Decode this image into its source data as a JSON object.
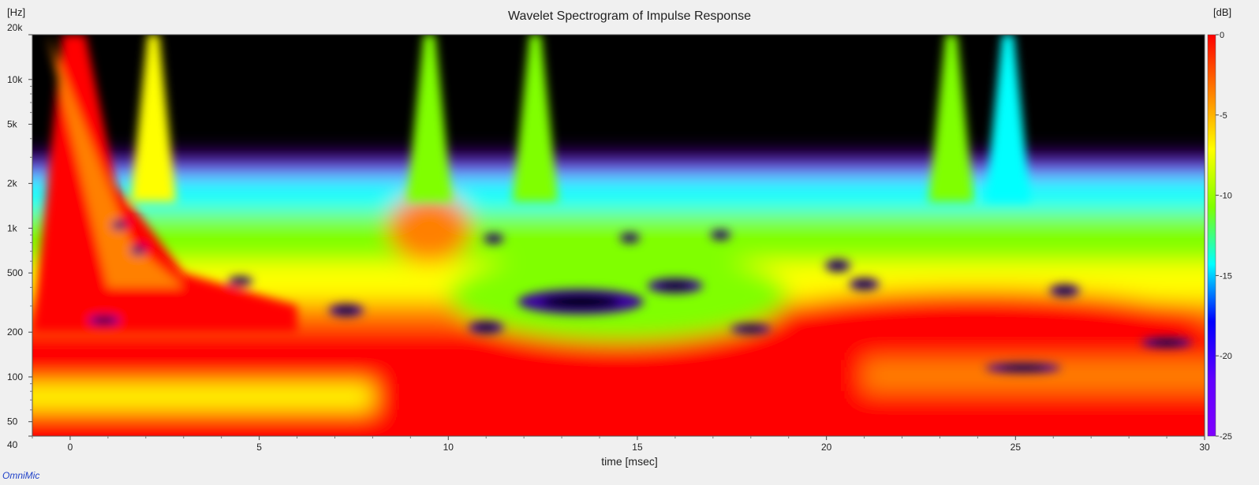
{
  "chart_data": {
    "type": "heatmap",
    "title": "Wavelet Spectrogram of Impulse Response",
    "xlabel": "time [msec]",
    "ylabel": "[Hz]",
    "colorbar_label": "[dB]",
    "x_range": [
      -1,
      30
    ],
    "y_range_hz": [
      40,
      20000
    ],
    "y_scale": "log",
    "z_range_db": [
      -25,
      0
    ],
    "x_ticks": [
      0,
      5,
      10,
      15,
      20,
      25,
      30
    ],
    "y_ticks": [
      {
        "value": 20000,
        "label": "20k"
      },
      {
        "value": 10000,
        "label": "10k"
      },
      {
        "value": 5000,
        "label": "5k"
      },
      {
        "value": 2000,
        "label": "2k"
      },
      {
        "value": 1000,
        "label": "1k"
      },
      {
        "value": 500,
        "label": "500"
      },
      {
        "value": 200,
        "label": "200"
      },
      {
        "value": 100,
        "label": "100"
      },
      {
        "value": 50,
        "label": "50"
      },
      {
        "value": 40,
        "label": "40"
      }
    ],
    "colorbar_ticks": [
      0,
      -5,
      -10,
      -15,
      -20,
      -25
    ],
    "colormap": [
      "#ff0000",
      "#ff8000",
      "#ffff00",
      "#80ff00",
      "#00ffff",
      "#0000ff",
      "#8000ff",
      "#000000"
    ]
  },
  "brand": "OmniMic"
}
